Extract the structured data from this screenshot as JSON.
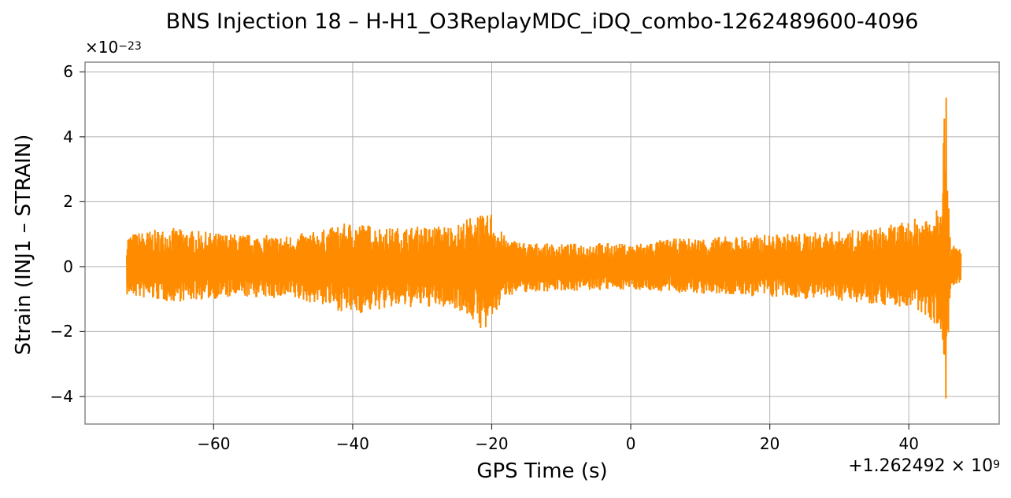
{
  "chart_data": {
    "type": "line",
    "title": "BNS Injection 18 – H-H1_O3ReplayMDC_iDQ_combo-1262489600-4096",
    "xlabel": "GPS Time (s)",
    "ylabel": "Strain (INJ1 – STRAIN)",
    "y_multiplier_text": "×10",
    "y_multiplier_exponent": "−23",
    "y_multiplier": 1e-23,
    "x_offset_text": "+1.262492 × 10",
    "x_offset_exponent": "9",
    "x_offset": 1262492000,
    "xlim": [
      -78.5,
      53
    ],
    "ylim": [
      -4.85,
      6.3
    ],
    "xticks": [
      -60,
      -40,
      -20,
      0,
      20,
      40
    ],
    "xtick_labels": [
      "−60",
      "−40",
      "−20",
      "0",
      "20",
      "40"
    ],
    "yticks": [
      -4,
      -2,
      0,
      2,
      4,
      6
    ],
    "ytick_labels": [
      "−4",
      "−2",
      "0",
      "2",
      "4",
      "6"
    ],
    "grid": true,
    "series": [
      {
        "color": "#ff8c00",
        "x_range": [
          -72.5,
          47.5
        ],
        "envelope_x": [
          -72.5,
          -70,
          -66,
          -60,
          -55,
          -50,
          -45,
          -40,
          -35,
          -30,
          -25,
          -22,
          -21,
          -20,
          -19.5,
          -18,
          -15,
          -10,
          -5,
          0,
          5,
          10,
          15,
          20,
          25,
          30,
          35,
          40,
          43,
          44.5,
          45.3,
          45.6,
          46,
          47.5
        ],
        "envelope_upper": [
          1.0,
          1.1,
          1.2,
          1.05,
          1.0,
          0.95,
          1.1,
          1.4,
          1.2,
          1.25,
          1.3,
          1.7,
          1.5,
          1.75,
          1.4,
          0.9,
          0.75,
          0.7,
          0.75,
          0.7,
          0.85,
          0.9,
          0.95,
          1.0,
          1.05,
          1.1,
          1.2,
          1.4,
          1.7,
          2.3,
          5.8,
          3.5,
          0.7,
          0.6
        ],
        "envelope_lower": [
          -0.9,
          -1.0,
          -1.1,
          -1.0,
          -0.95,
          -1.0,
          -1.15,
          -1.5,
          -1.3,
          -1.25,
          -1.3,
          -1.8,
          -2.1,
          -1.7,
          -1.5,
          -0.9,
          -0.8,
          -0.75,
          -0.75,
          -0.7,
          -0.8,
          -0.85,
          -0.9,
          -0.95,
          -1.0,
          -1.05,
          -1.15,
          -1.3,
          -1.6,
          -2.0,
          -4.4,
          -3.0,
          -0.7,
          -0.6
        ]
      }
    ]
  }
}
